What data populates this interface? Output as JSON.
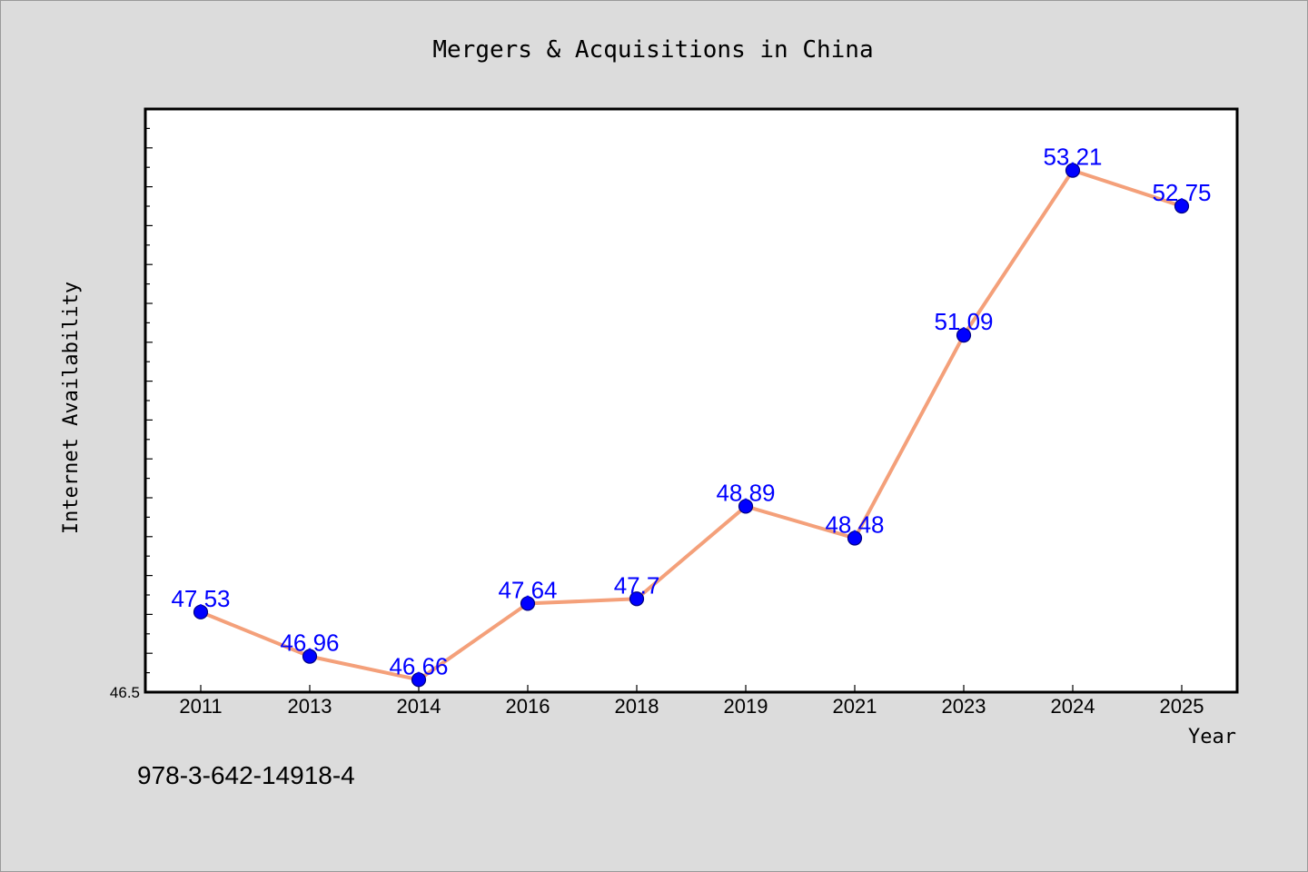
{
  "chart_data": {
    "type": "line",
    "title": "Mergers & Acquisitions in China",
    "xlabel": "Year",
    "ylabel": "Internet Availability",
    "categories": [
      "2011",
      "2013",
      "2014",
      "2016",
      "2018",
      "2019",
      "2021",
      "2023",
      "2024",
      "2025"
    ],
    "series": [
      {
        "values": [
          47.53,
          46.96,
          46.66,
          47.64,
          47.7,
          48.89,
          48.48,
          51.09,
          53.21,
          52.75
        ]
      }
    ],
    "data_labels": [
      "47.53",
      "46.96",
      "46.66",
      "47.64",
      "47.7",
      "48.89",
      "48.48",
      "51.09",
      "53.21",
      "52.75"
    ],
    "ylim": [
      46.5,
      54
    ],
    "ytick_labels": [
      "46.5"
    ],
    "grid": false,
    "legend": "none",
    "colors": {
      "line": "#f4a07a",
      "marker": "#0000ff",
      "marker_edge": "#000080",
      "data_label": "#0000ff",
      "plot_bg": "#ffffff",
      "page_bg": "#dcdcdc"
    }
  },
  "footer": {
    "text": "978-3-642-14918-4"
  }
}
